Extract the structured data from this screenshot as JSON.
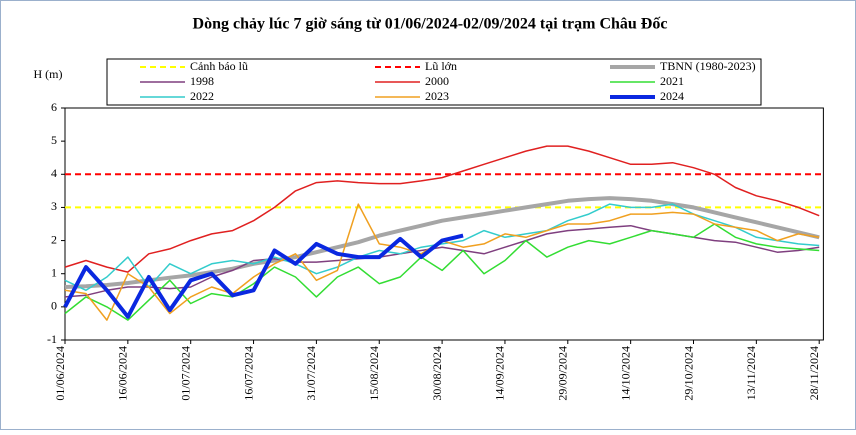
{
  "chart_data": {
    "type": "line",
    "title": "Dòng chảy lúc 7 giờ sáng từ 01/06/2024-02/09/2024 tại trạm Châu Đốc",
    "y_label": "H (m)",
    "x": [
      "01/06/2024",
      "06/06/2024",
      "11/06/2024",
      "16/06/2024",
      "21/06/2024",
      "26/06/2024",
      "01/07/2024",
      "06/07/2024",
      "11/07/2024",
      "16/07/2024",
      "21/07/2024",
      "26/07/2024",
      "31/07/2024",
      "05/08/2024",
      "10/08/2024",
      "15/08/2024",
      "20/08/2024",
      "25/08/2024",
      "30/08/2024",
      "04/09/2024",
      "09/09/2024",
      "14/09/2024",
      "19/09/2024",
      "24/09/2024",
      "29/09/2024",
      "04/10/2024",
      "09/10/2024",
      "14/10/2024",
      "19/10/2024",
      "24/10/2024",
      "29/10/2024",
      "03/11/2024",
      "08/11/2024",
      "13/11/2024",
      "18/11/2024",
      "23/11/2024",
      "28/11/2024"
    ],
    "xlim": [
      "01/06/2024",
      "29/11/2024"
    ],
    "xticks": [
      "01/06/2024",
      "16/06/2024",
      "01/07/2024",
      "16/07/2024",
      "31/07/2024",
      "15/08/2024",
      "30/08/2024",
      "14/09/2024",
      "29/09/2024",
      "14/10/2024",
      "29/10/2024",
      "13/11/2024",
      "28/11/2024"
    ],
    "ylim": [
      -1,
      6
    ],
    "yticks": [
      -1,
      0,
      1,
      2,
      3,
      4,
      5,
      6
    ],
    "reference_lines": [
      {
        "name": "Cảnh báo lũ",
        "color": "#ffff00",
        "value": 3,
        "dash": true
      },
      {
        "name": "Lũ lớn",
        "color": "#ff0000",
        "value": 4,
        "dash": true
      }
    ],
    "series": [
      {
        "name": "TBNN (1980-2023)",
        "color": "#a6a6a6",
        "width": 4,
        "values": [
          0.6,
          0.62,
          0.66,
          0.72,
          0.8,
          0.88,
          0.95,
          1.05,
          1.15,
          1.3,
          1.4,
          1.5,
          1.65,
          1.8,
          1.95,
          2.15,
          2.3,
          2.45,
          2.6,
          2.7,
          2.8,
          2.9,
          3.0,
          3.1,
          3.2,
          3.25,
          3.28,
          3.25,
          3.2,
          3.1,
          3.0,
          2.85,
          2.7,
          2.55,
          2.4,
          2.25,
          2.1
        ]
      },
      {
        "name": "1998",
        "color": "#7f3f7f",
        "width": 1.5,
        "values": [
          0.3,
          0.35,
          0.5,
          0.6,
          0.6,
          0.55,
          0.6,
          0.9,
          1.1,
          1.4,
          1.45,
          1.35,
          1.35,
          1.4,
          1.45,
          1.5,
          1.6,
          1.7,
          1.8,
          1.7,
          1.6,
          1.8,
          2.0,
          2.2,
          2.3,
          2.35,
          2.4,
          2.45,
          2.3,
          2.2,
          2.1,
          2.0,
          1.95,
          1.8,
          1.65,
          1.7,
          1.8
        ]
      },
      {
        "name": "2000",
        "color": "#e02020",
        "width": 1.5,
        "values": [
          1.2,
          1.4,
          1.2,
          1.05,
          1.6,
          1.75,
          2.0,
          2.2,
          2.3,
          2.6,
          3.0,
          3.5,
          3.75,
          3.8,
          3.75,
          3.72,
          3.72,
          3.8,
          3.9,
          4.1,
          4.3,
          4.5,
          4.7,
          4.85,
          4.85,
          4.7,
          4.5,
          4.3,
          4.3,
          4.35,
          4.2,
          4.0,
          3.6,
          3.35,
          3.2,
          3.0,
          2.75
        ]
      },
      {
        "name": "2021",
        "color": "#33dd33",
        "width": 1.5,
        "values": [
          -0.2,
          0.3,
          0.0,
          -0.4,
          0.2,
          0.8,
          0.1,
          0.4,
          0.3,
          0.7,
          1.2,
          0.9,
          0.3,
          0.9,
          1.2,
          0.7,
          0.9,
          1.5,
          1.1,
          1.7,
          1.0,
          1.4,
          2.0,
          1.5,
          1.8,
          2.0,
          1.9,
          2.1,
          2.3,
          2.2,
          2.1,
          2.5,
          2.1,
          1.9,
          1.8,
          1.75,
          1.7
        ]
      },
      {
        "name": "2022",
        "color": "#33cccc",
        "width": 1.5,
        "values": [
          0.8,
          0.5,
          0.9,
          1.5,
          0.6,
          1.3,
          1.0,
          1.3,
          1.4,
          1.3,
          1.5,
          1.3,
          1.0,
          1.2,
          1.5,
          1.7,
          1.6,
          1.8,
          1.9,
          2.0,
          2.3,
          2.1,
          2.2,
          2.3,
          2.6,
          2.8,
          3.1,
          3.0,
          3.0,
          3.1,
          2.8,
          2.6,
          2.4,
          2.1,
          2.0,
          1.9,
          1.85
        ]
      },
      {
        "name": "2023",
        "color": "#f0a020",
        "width": 1.5,
        "values": [
          0.5,
          0.4,
          -0.4,
          1.0,
          0.6,
          -0.2,
          0.3,
          0.6,
          0.4,
          0.9,
          1.3,
          1.6,
          0.8,
          1.1,
          3.1,
          1.9,
          1.8,
          1.6,
          2.0,
          1.8,
          1.9,
          2.2,
          2.1,
          2.3,
          2.5,
          2.5,
          2.6,
          2.8,
          2.8,
          2.85,
          2.8,
          2.5,
          2.4,
          2.3,
          2.0,
          2.2,
          2.1
        ]
      },
      {
        "name": "2024",
        "color": "#0a28e0",
        "width": 4,
        "values": [
          0.0,
          1.2,
          0.5,
          -0.3,
          0.9,
          -0.1,
          0.8,
          1.0,
          0.35,
          0.5,
          1.7,
          1.3,
          1.9,
          1.6,
          1.5,
          1.5,
          2.05,
          1.5,
          2.0,
          2.15,
          null,
          null,
          null,
          null,
          null,
          null,
          null,
          null,
          null,
          null,
          null,
          null,
          null,
          null,
          null,
          null,
          null
        ]
      }
    ]
  }
}
